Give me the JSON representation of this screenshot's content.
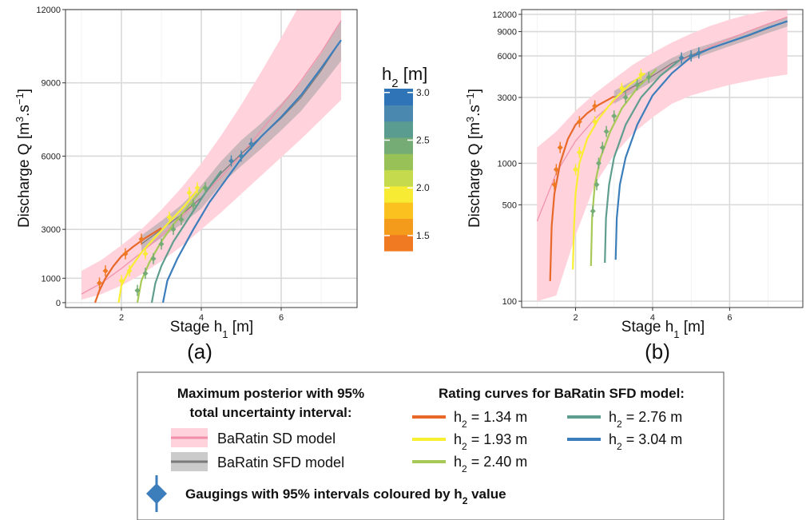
{
  "chart_data": [
    {
      "panel": "(a)",
      "type": "line",
      "y_scale": "linear",
      "xlabel": "Stage h₁ [m]",
      "ylabel": "Discharge Q [m³.s⁻¹]",
      "xlim": [
        0.6,
        7.9
      ],
      "ylim": [
        -200,
        12000
      ],
      "x_ticks": [
        2,
        4,
        6
      ],
      "y_ticks": [
        0,
        1000,
        3000,
        6000,
        9000,
        12000
      ],
      "series": [
        {
          "name": "BaRatin SD model",
          "x": [
            1.0,
            1.5,
            2.0,
            2.5,
            3.0,
            3.5,
            4.0,
            4.5,
            5.0,
            5.5,
            6.0,
            6.5,
            7.0,
            7.5
          ],
          "y": [
            350,
            800,
            1400,
            2050,
            2750,
            3500,
            4300,
            5150,
            6050,
            7050,
            8050,
            9100,
            10250,
            11550
          ],
          "lower": [
            120,
            350,
            700,
            1150,
            1700,
            2300,
            3000,
            3700,
            4450,
            5200,
            5950,
            6700,
            7500,
            8300
          ],
          "upper": [
            1300,
            1750,
            2350,
            3000,
            3800,
            4700,
            5700,
            6850,
            8100,
            9450,
            10850,
            12300,
            13800,
            15300
          ]
        },
        {
          "name": "BaRatin SFD model",
          "x": [
            2.5,
            3.0,
            3.5,
            4.0,
            4.5,
            5.0,
            5.5,
            6.0,
            6.5,
            7.0,
            7.5
          ],
          "y": [
            2400,
            3000,
            3600,
            4300,
            5300,
            6100,
            6800,
            7550,
            8400,
            9500,
            10750
          ],
          "lower": [
            2100,
            2650,
            3200,
            3850,
            4850,
            5600,
            6300,
            7050,
            7850,
            8850,
            9900
          ],
          "upper": [
            2750,
            3350,
            4000,
            4800,
            5800,
            6650,
            7350,
            8150,
            9050,
            10200,
            11550
          ]
        },
        {
          "name": "h₂ = 1.34 m",
          "x": [
            1.34,
            1.45,
            1.6,
            1.8,
            2.0,
            2.3,
            2.6,
            3.0
          ],
          "y": [
            0,
            500,
            1000,
            1500,
            1900,
            2300,
            2650,
            3050
          ]
        },
        {
          "name": "h₂ = 1.93 m",
          "x": [
            1.93,
            2.0,
            2.2,
            2.5,
            2.8,
            3.2,
            3.6,
            3.9
          ],
          "y": [
            0,
            700,
            1350,
            2050,
            2600,
            3300,
            4000,
            4600
          ]
        },
        {
          "name": "h₂ = 2.40 m",
          "x": [
            2.4,
            2.5,
            2.7,
            3.0,
            3.3,
            3.7,
            4.1
          ],
          "y": [
            0,
            900,
            1650,
            2500,
            3200,
            4000,
            4800
          ]
        },
        {
          "name": "h₂ = 2.76 m",
          "x": [
            2.76,
            2.85,
            3.0,
            3.3,
            3.7,
            4.1,
            4.5
          ],
          "y": [
            0,
            800,
            1500,
            2500,
            3500,
            4500,
            5400
          ]
        },
        {
          "name": "h₂ = 3.04 m",
          "x": [
            3.04,
            3.15,
            3.4,
            3.8,
            4.2,
            4.6,
            5.0,
            5.5,
            6.0,
            6.5,
            7.0,
            7.5
          ],
          "y": [
            0,
            900,
            1800,
            3000,
            4100,
            5000,
            5900,
            6800,
            7600,
            8500,
            9600,
            10750
          ]
        }
      ],
      "gaugings": [
        {
          "x": 1.45,
          "y": 800,
          "h2": 1.34
        },
        {
          "x": 1.6,
          "y": 1300,
          "h2": 1.34
        },
        {
          "x": 2.1,
          "y": 2000,
          "h2": 1.34
        },
        {
          "x": 2.5,
          "y": 2600,
          "h2": 1.34
        },
        {
          "x": 2.0,
          "y": 900,
          "h2": 1.93
        },
        {
          "x": 2.2,
          "y": 1300,
          "h2": 1.93
        },
        {
          "x": 2.6,
          "y": 2000,
          "h2": 1.93
        },
        {
          "x": 3.2,
          "y": 3500,
          "h2": 1.93
        },
        {
          "x": 3.7,
          "y": 4500,
          "h2": 1.93
        },
        {
          "x": 3.9,
          "y": 4700,
          "h2": 1.93
        },
        {
          "x": 2.4,
          "y": 500,
          "h2": 2.4
        },
        {
          "x": 2.6,
          "y": 1200,
          "h2": 2.4
        },
        {
          "x": 2.8,
          "y": 1800,
          "h2": 2.4
        },
        {
          "x": 3.0,
          "y": 2400,
          "h2": 2.4
        },
        {
          "x": 3.3,
          "y": 3000,
          "h2": 2.4
        },
        {
          "x": 3.5,
          "y": 3400,
          "h2": 2.4
        },
        {
          "x": 3.8,
          "y": 4000,
          "h2": 2.4
        },
        {
          "x": 4.1,
          "y": 4700,
          "h2": 2.4
        },
        {
          "x": 4.75,
          "y": 5800,
          "h2": 2.76
        },
        {
          "x": 5.0,
          "y": 6000,
          "h2": 2.76
        },
        {
          "x": 5.25,
          "y": 6500,
          "h2": 2.76
        }
      ]
    },
    {
      "panel": "(b)",
      "type": "line",
      "y_scale": "log",
      "xlabel": "Stage h₁ [m]",
      "ylabel": "Discharge Q [m³.s⁻¹]",
      "xlim": [
        0.6,
        7.9
      ],
      "ylim": [
        90,
        13000
      ],
      "x_ticks": [
        2,
        4,
        6
      ],
      "y_ticks": [
        100,
        500,
        1000,
        3000,
        6000,
        9000,
        12000
      ],
      "series": [
        {
          "name": "BaRatin SD model",
          "x": [
            1.0,
            1.5,
            2.0,
            2.5,
            3.0,
            3.5,
            4.0,
            4.5,
            5.0,
            5.5,
            6.0,
            6.5,
            7.0,
            7.5
          ],
          "y": [
            380,
            850,
            1450,
            2100,
            2800,
            3550,
            4350,
            5150,
            6050,
            7000,
            8000,
            9100,
            10250,
            11500
          ],
          "lower": [
            100,
            110,
            300,
            700,
            1150,
            1650,
            2150,
            2700,
            3100,
            3400,
            3700,
            3950,
            4200,
            4400
          ],
          "upper": [
            1300,
            1700,
            2400,
            3200,
            4100,
            5200,
            6300,
            7500,
            8700,
            9900,
            11000,
            12000,
            12800,
            13000
          ]
        },
        {
          "name": "BaRatin SFD model",
          "x": [
            3.0,
            3.5,
            4.0,
            4.5,
            5.0,
            5.5,
            6.0,
            6.5,
            7.0,
            7.5
          ],
          "y": [
            3000,
            3600,
            4300,
            5300,
            6100,
            6800,
            7550,
            8400,
            9500,
            10700
          ],
          "lower": [
            2700,
            3250,
            3900,
            4850,
            5650,
            6300,
            7050,
            7850,
            8800,
            9800
          ],
          "upper": [
            3350,
            4000,
            4800,
            5800,
            6650,
            7350,
            8150,
            9050,
            10200,
            11500
          ]
        },
        {
          "name": "h₂ = 1.34 m",
          "x": [
            1.34,
            1.38,
            1.45,
            1.6,
            1.8,
            2.0,
            2.3,
            2.6,
            3.0
          ],
          "y": [
            140,
            350,
            600,
            1000,
            1500,
            1900,
            2300,
            2650,
            3050
          ]
        },
        {
          "name": "h₂ = 1.93 m",
          "x": [
            1.93,
            1.96,
            2.0,
            2.1,
            2.3,
            2.6,
            3.0,
            3.4,
            3.8
          ],
          "y": [
            170,
            350,
            600,
            1000,
            1500,
            2100,
            2900,
            3700,
            4500
          ]
        },
        {
          "name": "h₂ = 2.40 m",
          "x": [
            2.4,
            2.43,
            2.5,
            2.65,
            2.9,
            3.2,
            3.6,
            4.1
          ],
          "y": [
            180,
            400,
            700,
            1100,
            1700,
            2500,
            3500,
            4800
          ]
        },
        {
          "name": "h₂ = 2.76 m",
          "x": [
            2.76,
            2.79,
            2.87,
            3.0,
            3.3,
            3.7,
            4.2,
            4.7
          ],
          "y": [
            190,
            400,
            700,
            1100,
            1900,
            3000,
            4300,
            5600
          ]
        },
        {
          "name": "h₂ = 3.04 m",
          "x": [
            3.04,
            3.07,
            3.15,
            3.3,
            3.6,
            4.0,
            4.5,
            5.0,
            5.5,
            6.0,
            6.5,
            7.0,
            7.5
          ],
          "y": [
            200,
            400,
            700,
            1100,
            1900,
            3100,
            4500,
            5900,
            6800,
            7600,
            8500,
            9600,
            10700
          ]
        }
      ],
      "gaugings": [
        {
          "x": 1.45,
          "y": 700,
          "h2": 1.34
        },
        {
          "x": 1.5,
          "y": 900,
          "h2": 1.34
        },
        {
          "x": 1.6,
          "y": 1300,
          "h2": 1.34
        },
        {
          "x": 2.1,
          "y": 2000,
          "h2": 1.34
        },
        {
          "x": 2.5,
          "y": 2600,
          "h2": 1.34
        },
        {
          "x": 2.0,
          "y": 900,
          "h2": 1.93
        },
        {
          "x": 2.1,
          "y": 1200,
          "h2": 1.93
        },
        {
          "x": 2.5,
          "y": 2000,
          "h2": 1.93
        },
        {
          "x": 3.2,
          "y": 3500,
          "h2": 1.93
        },
        {
          "x": 3.7,
          "y": 4400,
          "h2": 1.93
        },
        {
          "x": 2.45,
          "y": 450,
          "h2": 2.4
        },
        {
          "x": 2.55,
          "y": 700,
          "h2": 2.4
        },
        {
          "x": 2.6,
          "y": 1000,
          "h2": 2.4
        },
        {
          "x": 2.7,
          "y": 1300,
          "h2": 2.4
        },
        {
          "x": 2.8,
          "y": 1700,
          "h2": 2.4
        },
        {
          "x": 3.0,
          "y": 2200,
          "h2": 2.4
        },
        {
          "x": 3.3,
          "y": 3000,
          "h2": 2.4
        },
        {
          "x": 3.6,
          "y": 3700,
          "h2": 2.4
        },
        {
          "x": 3.9,
          "y": 4200,
          "h2": 2.4
        },
        {
          "x": 4.75,
          "y": 5800,
          "h2": 2.76
        },
        {
          "x": 5.0,
          "y": 6000,
          "h2": 2.76
        },
        {
          "x": 5.2,
          "y": 6300,
          "h2": 2.76
        }
      ]
    }
  ],
  "colorbar": {
    "title_main": "h",
    "title_sub": "2",
    "title_unit": " [m]",
    "range": [
      1.34,
      3.04
    ],
    "ticks": [
      1.5,
      2.0,
      2.5,
      3.0
    ],
    "tick_labels": [
      "1.5",
      "2.0",
      "2.5",
      "3.0"
    ],
    "colors": [
      "#f07a22",
      "#f59b1c",
      "#fbc21f",
      "#f7ec33",
      "#c5da4d",
      "#98c258",
      "#75ab75",
      "#5a9c8f",
      "#4a88b0",
      "#2f74b6"
    ]
  },
  "colors": {
    "sd_band": "#ffd2dc",
    "sd_line": "#f28fa8",
    "sfd_band": "#a0a0a0",
    "sfd_line": "#7a7a7a",
    "h2_1.34": "#e8682a",
    "h2_1.93": "#f8ee32",
    "h2_2.40": "#a7c957",
    "h2_2.76": "#5f9d8f",
    "h2_3.04": "#3c7dbb"
  },
  "legend": {
    "col1_title_line1": "Maximum posterior with 95%",
    "col1_title_line2": "total uncertainty interval:",
    "sd_label": "BaRatin SD model",
    "sfd_label": "BaRatin SFD model",
    "col2_title": "Rating curves for BaRatin SFD model:",
    "curve_labels": [
      {
        "h": "h",
        "sub": "2",
        "rest": " = 1.34 m"
      },
      {
        "h": "h",
        "sub": "2",
        "rest": " = 1.93 m"
      },
      {
        "h": "h",
        "sub": "2",
        "rest": " = 2.40 m"
      },
      {
        "h": "h",
        "sub": "2",
        "rest": " = 2.76 m"
      },
      {
        "h": "h",
        "sub": "2",
        "rest": " = 3.04 m"
      }
    ],
    "gauging_label_main": "Gaugings with 95% intervals coloured by h",
    "gauging_label_sub": "2",
    "gauging_label_tail": " value"
  },
  "axis_text": {
    "xlabel_main": "Stage h",
    "xlabel_sub": "1",
    "xlabel_tail": " [m]",
    "ylabel_main": "Discharge Q [m",
    "ylabel_sup1": "3",
    "ylabel_mid": ".s",
    "ylabel_sup2": "−1",
    "ylabel_tail": "]"
  },
  "panel_labels": [
    "(a)",
    "(b)"
  ]
}
